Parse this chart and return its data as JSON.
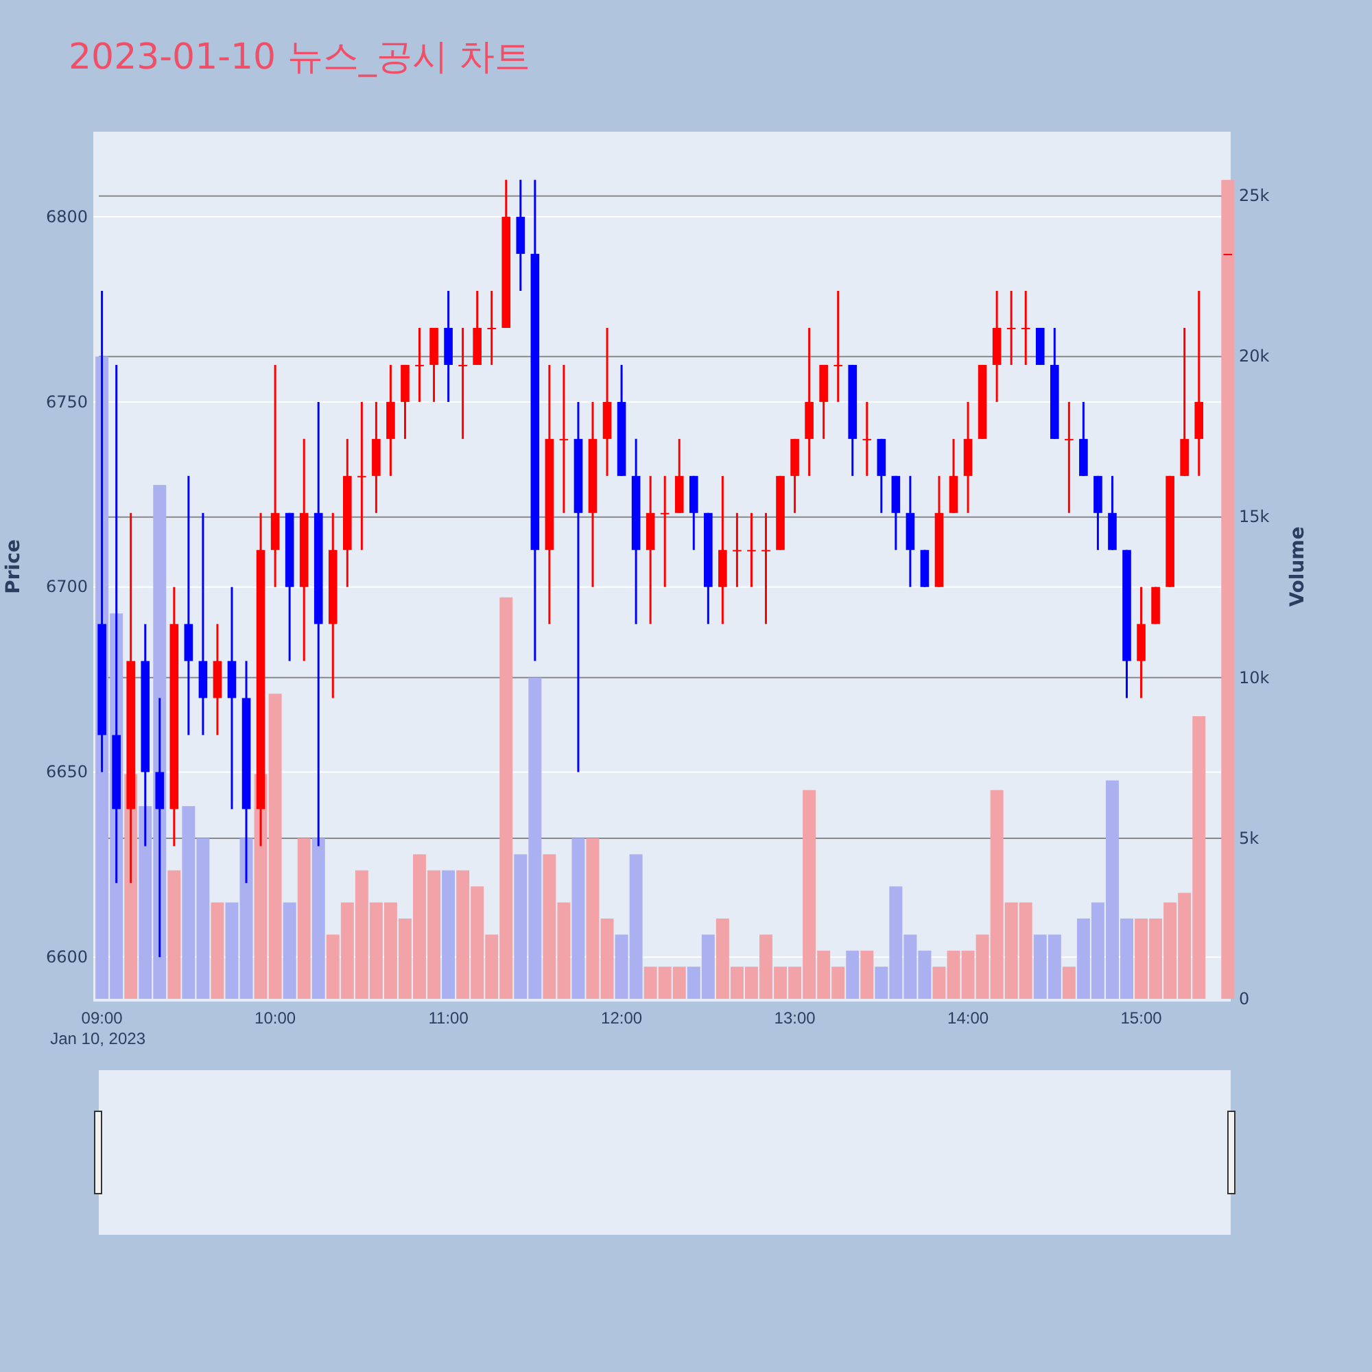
{
  "chart_data": {
    "type": "candlestick",
    "title": "2023-01-10 뉴스_공시 차트",
    "ylabel": "Price",
    "y2label": "Volume",
    "xlim": [
      "2023-01-10T08:57",
      "2023-01-10T15:31"
    ],
    "xticks": [
      {
        "value": "2023-01-10T09:00",
        "label": "09:00\nJan 10, 2023"
      },
      {
        "value": "2023-01-10T10:00",
        "label": "10:00"
      },
      {
        "value": "2023-01-10T11:00",
        "label": "11:00"
      },
      {
        "value": "2023-01-10T12:00",
        "label": "12:00"
      },
      {
        "value": "2023-01-10T13:00",
        "label": "13:00"
      },
      {
        "value": "2023-01-10T14:00",
        "label": "14:00"
      },
      {
        "value": "2023-01-10T15:00",
        "label": "15:00"
      }
    ],
    "ylim": [
      6588,
      6823
    ],
    "yticks": [
      6600,
      6650,
      6700,
      6750,
      6800
    ],
    "y2lim": [
      0,
      27000
    ],
    "y2ticks": [
      0,
      {
        "value": 5000,
        "label": "5k"
      },
      {
        "value": 10000,
        "label": "10k"
      },
      {
        "value": 15000,
        "label": "15k"
      },
      {
        "value": 20000,
        "label": "20k"
      },
      {
        "value": 25000,
        "label": "25k"
      }
    ],
    "grid": true,
    "x": [
      "2023-01-10T09:00",
      "2023-01-10T09:05",
      "2023-01-10T09:10",
      "2023-01-10T09:15",
      "2023-01-10T09:20",
      "2023-01-10T09:25",
      "2023-01-10T09:30",
      "2023-01-10T09:35",
      "2023-01-10T09:40",
      "2023-01-10T09:45",
      "2023-01-10T09:50",
      "2023-01-10T09:55",
      "2023-01-10T10:00",
      "2023-01-10T10:05",
      "2023-01-10T10:10",
      "2023-01-10T10:15",
      "2023-01-10T10:20",
      "2023-01-10T10:25",
      "2023-01-10T10:30",
      "2023-01-10T10:35",
      "2023-01-10T10:40",
      "2023-01-10T10:45",
      "2023-01-10T10:50",
      "2023-01-10T10:55",
      "2023-01-10T11:00",
      "2023-01-10T11:05",
      "2023-01-10T11:10",
      "2023-01-10T11:15",
      "2023-01-10T11:20",
      "2023-01-10T11:25",
      "2023-01-10T11:30",
      "2023-01-10T11:35",
      "2023-01-10T11:40",
      "2023-01-10T11:45",
      "2023-01-10T11:50",
      "2023-01-10T11:55",
      "2023-01-10T12:00",
      "2023-01-10T12:05",
      "2023-01-10T12:10",
      "2023-01-10T12:15",
      "2023-01-10T12:20",
      "2023-01-10T12:25",
      "2023-01-10T12:30",
      "2023-01-10T12:35",
      "2023-01-10T12:40",
      "2023-01-10T12:45",
      "2023-01-10T12:50",
      "2023-01-10T12:55",
      "2023-01-10T13:00",
      "2023-01-10T13:05",
      "2023-01-10T13:10",
      "2023-01-10T13:15",
      "2023-01-10T13:20",
      "2023-01-10T13:25",
      "2023-01-10T13:30",
      "2023-01-10T13:35",
      "2023-01-10T13:40",
      "2023-01-10T13:45",
      "2023-01-10T13:50",
      "2023-01-10T13:55",
      "2023-01-10T14:00",
      "2023-01-10T14:05",
      "2023-01-10T14:10",
      "2023-01-10T14:15",
      "2023-01-10T14:20",
      "2023-01-10T14:25",
      "2023-01-10T14:30",
      "2023-01-10T14:35",
      "2023-01-10T14:40",
      "2023-01-10T14:45",
      "2023-01-10T14:50",
      "2023-01-10T14:55",
      "2023-01-10T15:00",
      "2023-01-10T15:05",
      "2023-01-10T15:10",
      "2023-01-10T15:15",
      "2023-01-10T15:20",
      "2023-01-10T15:30"
    ],
    "series": [
      {
        "type": "bar",
        "axis": "y2",
        "values": [
          20000,
          12000,
          7000,
          6000,
          16000,
          4000,
          6000,
          5000,
          3000,
          3000,
          5000,
          7000,
          9500,
          3000,
          5000,
          5000,
          2000,
          3000,
          4000,
          3000,
          3000,
          2500,
          4500,
          4000,
          4000,
          4000,
          3500,
          2000,
          12500,
          4500,
          10000,
          4500,
          3000,
          5000,
          5000,
          2500,
          2000,
          4500,
          1000,
          1000,
          1000,
          1000,
          2000,
          2500,
          1000,
          1000,
          2000,
          1000,
          1000,
          6500,
          1500,
          1000,
          1500,
          1500,
          1000,
          3500,
          2000,
          1500,
          1000,
          1500,
          1500,
          2000,
          6500,
          3000,
          3000,
          2000,
          2000,
          1000,
          2500,
          3000,
          6800,
          2500,
          2500,
          2500,
          3000,
          3300,
          8800,
          25500
        ],
        "colors": [
          "#aab0f0",
          "#aab0f0",
          "#f2a3a8",
          "#aab0f0",
          "#aab0f0",
          "#f2a3a8",
          "#aab0f0",
          "#aab0f0",
          "#f2a3a8",
          "#aab0f0",
          "#aab0f0",
          "#f2a3a8",
          "#f2a3a8",
          "#aab0f0",
          "#f2a3a8",
          "#aab0f0",
          "#f2a3a8",
          "#f2a3a8",
          "#f2a3a8",
          "#f2a3a8",
          "#f2a3a8",
          "#f2a3a8",
          "#f2a3a8",
          "#f2a3a8",
          "#aab0f0",
          "#f2a3a8",
          "#f2a3a8",
          "#f2a3a8",
          "#f2a3a8",
          "#aab0f0",
          "#aab0f0",
          "#f2a3a8",
          "#f2a3a8",
          "#aab0f0",
          "#f2a3a8",
          "#f2a3a8",
          "#aab0f0",
          "#aab0f0",
          "#f2a3a8",
          "#f2a3a8",
          "#f2a3a8",
          "#aab0f0",
          "#aab0f0",
          "#f2a3a8",
          "#f2a3a8",
          "#f2a3a8",
          "#f2a3a8",
          "#f2a3a8",
          "#f2a3a8",
          "#f2a3a8",
          "#f2a3a8",
          "#f2a3a8",
          "#aab0f0",
          "#f2a3a8",
          "#aab0f0",
          "#aab0f0",
          "#aab0f0",
          "#aab0f0",
          "#f2a3a8",
          "#f2a3a8",
          "#f2a3a8",
          "#f2a3a8",
          "#f2a3a8",
          "#f2a3a8",
          "#f2a3a8",
          "#aab0f0",
          "#aab0f0",
          "#f2a3a8",
          "#aab0f0",
          "#aab0f0",
          "#aab0f0",
          "#aab0f0",
          "#f2a3a8",
          "#f2a3a8",
          "#f2a3a8",
          "#f2a3a8",
          "#f2a3a8",
          "#f2a3a8"
        ]
      },
      {
        "ohlc": [
          [
            6690,
            6780,
            6650,
            6660
          ],
          [
            6660,
            6760,
            6620,
            6640
          ],
          [
            6640,
            6720,
            6620,
            6680
          ],
          [
            6680,
            6690,
            6630,
            6650
          ],
          [
            6650,
            6670,
            6600,
            6640
          ],
          [
            6640,
            6700,
            6630,
            6690
          ],
          [
            6690,
            6730,
            6660,
            6680
          ],
          [
            6680,
            6720,
            6660,
            6670
          ],
          [
            6670,
            6690,
            6660,
            6680
          ],
          [
            6680,
            6700,
            6640,
            6670
          ],
          [
            6670,
            6680,
            6620,
            6640
          ],
          [
            6640,
            6720,
            6630,
            6710
          ],
          [
            6710,
            6760,
            6700,
            6720
          ],
          [
            6720,
            6720,
            6680,
            6700
          ],
          [
            6700,
            6740,
            6680,
            6720
          ],
          [
            6720,
            6750,
            6630,
            6690
          ],
          [
            6690,
            6720,
            6670,
            6710
          ],
          [
            6710,
            6740,
            6700,
            6730
          ],
          [
            6730,
            6750,
            6710,
            6730
          ],
          [
            6730,
            6750,
            6720,
            6740
          ],
          [
            6740,
            6760,
            6730,
            6750
          ],
          [
            6750,
            6760,
            6740,
            6760
          ],
          [
            6760,
            6770,
            6750,
            6760
          ],
          [
            6760,
            6770,
            6750,
            6770
          ],
          [
            6770,
            6780,
            6750,
            6760
          ],
          [
            6760,
            6770,
            6740,
            6760
          ],
          [
            6760,
            6780,
            6760,
            6770
          ],
          [
            6770,
            6780,
            6760,
            6770
          ],
          [
            6770,
            6810,
            6770,
            6800
          ],
          [
            6800,
            6810,
            6780,
            6790
          ],
          [
            6790,
            6810,
            6680,
            6710
          ],
          [
            6710,
            6760,
            6690,
            6740
          ],
          [
            6740,
            6760,
            6720,
            6740
          ],
          [
            6740,
            6750,
            6650,
            6720
          ],
          [
            6720,
            6750,
            6700,
            6740
          ],
          [
            6740,
            6770,
            6730,
            6750
          ],
          [
            6750,
            6760,
            6730,
            6730
          ],
          [
            6730,
            6740,
            6690,
            6710
          ],
          [
            6710,
            6730,
            6690,
            6720
          ],
          [
            6720,
            6730,
            6700,
            6720
          ],
          [
            6720,
            6740,
            6720,
            6730
          ],
          [
            6730,
            6730,
            6710,
            6720
          ],
          [
            6720,
            6720,
            6690,
            6700
          ],
          [
            6700,
            6730,
            6690,
            6710
          ],
          [
            6710,
            6720,
            6700,
            6710
          ],
          [
            6710,
            6720,
            6700,
            6710
          ],
          [
            6710,
            6720,
            6690,
            6710
          ],
          [
            6710,
            6730,
            6710,
            6730
          ],
          [
            6730,
            6740,
            6720,
            6740
          ],
          [
            6740,
            6770,
            6730,
            6750
          ],
          [
            6750,
            6760,
            6740,
            6760
          ],
          [
            6760,
            6780,
            6750,
            6760
          ],
          [
            6760,
            6760,
            6730,
            6740
          ],
          [
            6740,
            6750,
            6730,
            6740
          ],
          [
            6740,
            6740,
            6720,
            6730
          ],
          [
            6730,
            6730,
            6710,
            6720
          ],
          [
            6720,
            6730,
            6700,
            6710
          ],
          [
            6710,
            6710,
            6700,
            6700
          ],
          [
            6700,
            6730,
            6700,
            6720
          ],
          [
            6720,
            6740,
            6720,
            6730
          ],
          [
            6730,
            6750,
            6720,
            6740
          ],
          [
            6740,
            6760,
            6740,
            6760
          ],
          [
            6760,
            6780,
            6750,
            6770
          ],
          [
            6770,
            6780,
            6760,
            6770
          ],
          [
            6770,
            6780,
            6760,
            6770
          ],
          [
            6770,
            6770,
            6760,
            6760
          ],
          [
            6760,
            6770,
            6740,
            6740
          ],
          [
            6740,
            6750,
            6720,
            6740
          ],
          [
            6740,
            6750,
            6730,
            6730
          ],
          [
            6730,
            6730,
            6710,
            6720
          ],
          [
            6720,
            6730,
            6710,
            6710
          ],
          [
            6710,
            6710,
            6670,
            6680
          ],
          [
            6680,
            6700,
            6670,
            6690
          ],
          [
            6690,
            6700,
            6690,
            6700
          ],
          [
            6700,
            6730,
            6700,
            6730
          ],
          [
            6730,
            6770,
            6730,
            6740
          ],
          [
            6740,
            6780,
            6730,
            6750
          ],
          [
            6790,
            6790,
            6790,
            6790
          ]
        ],
        "colors": [
          "#0000ff",
          "#0000ff",
          "#ff0000",
          "#0000ff",
          "#0000ff",
          "#ff0000",
          "#0000ff",
          "#0000ff",
          "#ff0000",
          "#0000ff",
          "#0000ff",
          "#ff0000",
          "#ff0000",
          "#0000ff",
          "#ff0000",
          "#0000ff",
          "#ff0000",
          "#ff0000",
          "#ff0000",
          "#ff0000",
          "#ff0000",
          "#ff0000",
          "#ff0000",
          "#ff0000",
          "#0000ff",
          "#ff0000",
          "#ff0000",
          "#ff0000",
          "#ff0000",
          "#0000ff",
          "#0000ff",
          "#ff0000",
          "#ff0000",
          "#0000ff",
          "#ff0000",
          "#ff0000",
          "#0000ff",
          "#0000ff",
          "#ff0000",
          "#ff0000",
          "#ff0000",
          "#0000ff",
          "#0000ff",
          "#ff0000",
          "#ff0000",
          "#ff0000",
          "#ff0000",
          "#ff0000",
          "#ff0000",
          "#ff0000",
          "#ff0000",
          "#ff0000",
          "#0000ff",
          "#ff0000",
          "#0000ff",
          "#0000ff",
          "#0000ff",
          "#0000ff",
          "#ff0000",
          "#ff0000",
          "#ff0000",
          "#ff0000",
          "#ff0000",
          "#ff0000",
          "#ff0000",
          "#0000ff",
          "#0000ff",
          "#ff0000",
          "#0000ff",
          "#0000ff",
          "#0000ff",
          "#0000ff",
          "#ff0000",
          "#ff0000",
          "#ff0000",
          "#ff0000",
          "#ff0000",
          "#ff0000"
        ]
      }
    ]
  }
}
